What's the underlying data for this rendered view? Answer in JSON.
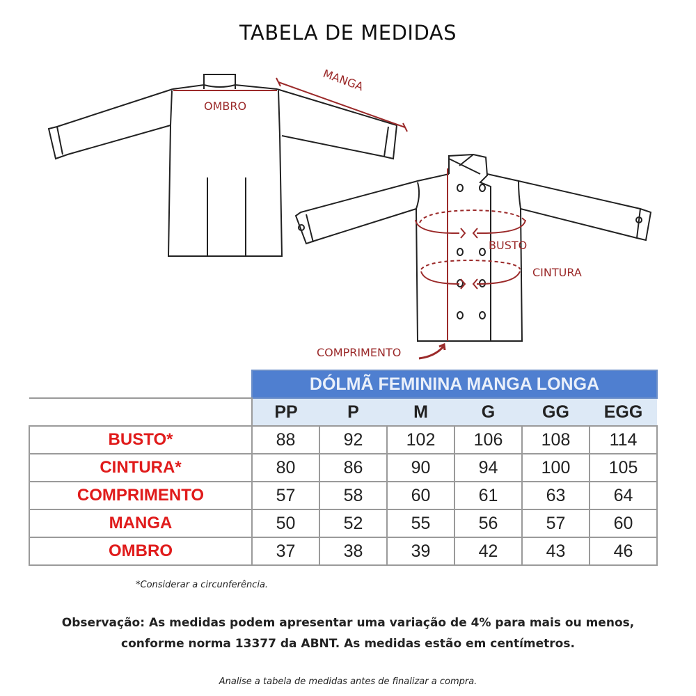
{
  "title": "TABELA DE MEDIDAS",
  "diagram_labels": {
    "ombro": "OMBRO",
    "manga": "MANGA",
    "busto": "BUSTO",
    "cintura": "CINTURA",
    "comprimento": "COMPRIMENTO"
  },
  "colors": {
    "header_blue": "#4f7fd0",
    "size_row": "#dde9f6",
    "label_red": "#e01b1b",
    "diagram_red": "#9b2a2a"
  },
  "table": {
    "title": "DÓLMÃ FEMININA MANGA LONGA",
    "sizes": [
      "PP",
      "P",
      "M",
      "G",
      "GG",
      "EGG"
    ],
    "rows": [
      {
        "label": "BUSTO*",
        "values": [
          "88",
          "92",
          "102",
          "106",
          "108",
          "114"
        ]
      },
      {
        "label": "CINTURA*",
        "values": [
          "80",
          "86",
          "90",
          "94",
          "100",
          "105"
        ]
      },
      {
        "label": "COMPRIMENTO",
        "values": [
          "57",
          "58",
          "60",
          "61",
          "63",
          "64"
        ]
      },
      {
        "label": "MANGA",
        "values": [
          "50",
          "52",
          "55",
          "56",
          "57",
          "60"
        ]
      },
      {
        "label": "OMBRO",
        "values": [
          "37",
          "38",
          "39",
          "42",
          "43",
          "46"
        ]
      }
    ]
  },
  "footnote": "*Considerar a circunferência.",
  "observation_line1": "Observação: As medidas podem apresentar uma variação de 4% para mais ou menos,",
  "observation_line2": "conforme norma 13377 da ABNT. As medidas estão em centímetros.",
  "final_note": "Analise a tabela de medidas antes de finalizar a compra."
}
